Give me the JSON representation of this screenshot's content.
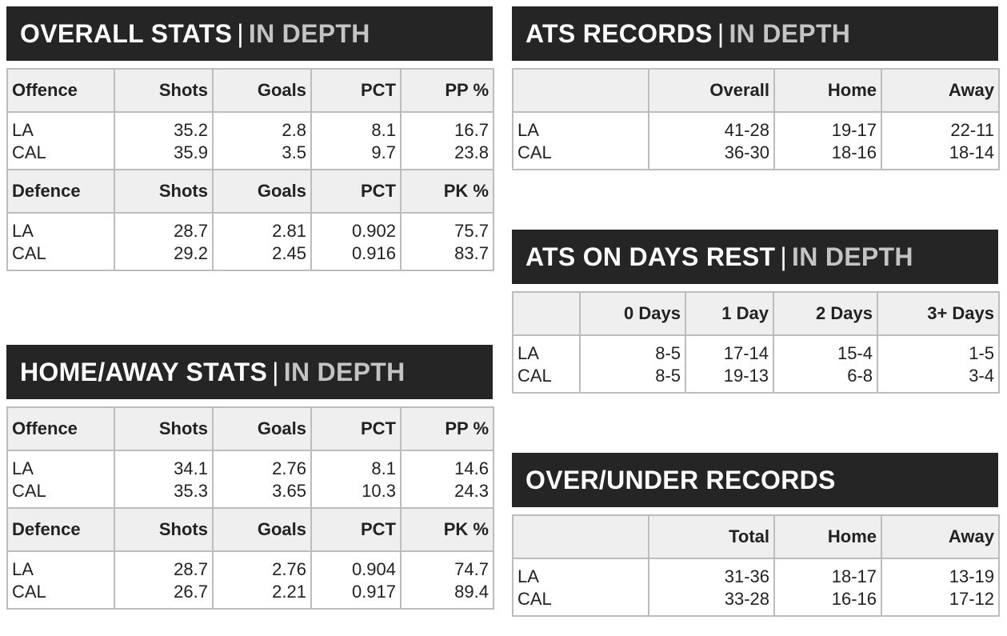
{
  "overall": {
    "title": "OVERALL STATS",
    "title_suffix": "IN DEPTH",
    "blocks": [
      {
        "headers": [
          "Offence",
          "Shots",
          "Goals",
          "PCT",
          "PP %"
        ],
        "rows": [
          [
            "LA",
            "35.2",
            "2.8",
            "8.1",
            "16.7"
          ],
          [
            "CAL",
            "35.9",
            "3.5",
            "9.7",
            "23.8"
          ]
        ]
      },
      {
        "headers": [
          "Defence",
          "Shots",
          "Goals",
          "PCT",
          "PK %"
        ],
        "rows": [
          [
            "LA",
            "28.7",
            "2.81",
            "0.902",
            "75.7"
          ],
          [
            "CAL",
            "29.2",
            "2.45",
            "0.916",
            "83.7"
          ]
        ]
      }
    ]
  },
  "homeaway": {
    "title": "HOME/AWAY STATS",
    "title_suffix": "IN DEPTH",
    "blocks": [
      {
        "headers": [
          "Offence",
          "Shots",
          "Goals",
          "PCT",
          "PP %"
        ],
        "rows": [
          [
            "LA",
            "34.1",
            "2.76",
            "8.1",
            "14.6"
          ],
          [
            "CAL",
            "35.3",
            "3.65",
            "10.3",
            "24.3"
          ]
        ]
      },
      {
        "headers": [
          "Defence",
          "Shots",
          "Goals",
          "PCT",
          "PK %"
        ],
        "rows": [
          [
            "LA",
            "28.7",
            "2.76",
            "0.904",
            "74.7"
          ],
          [
            "CAL",
            "26.7",
            "2.21",
            "0.917",
            "89.4"
          ]
        ]
      }
    ]
  },
  "ats": {
    "title": "ATS RECORDS",
    "title_suffix": "IN DEPTH",
    "headers": [
      "",
      "Overall",
      "Home",
      "Away"
    ],
    "rows": [
      [
        "LA",
        "41-28",
        "19-17",
        "22-11"
      ],
      [
        "CAL",
        "36-30",
        "18-16",
        "18-14"
      ]
    ]
  },
  "rest": {
    "title": "ATS ON DAYS REST",
    "title_suffix": "IN DEPTH",
    "headers": [
      "",
      "0 Days",
      "1 Day",
      "2 Days",
      "3+ Days"
    ],
    "rows": [
      [
        "LA",
        "8-5",
        "17-14",
        "15-4",
        "1-5"
      ],
      [
        "CAL",
        "8-5",
        "19-13",
        "6-8",
        "3-4"
      ]
    ]
  },
  "ou": {
    "title": "OVER/UNDER RECORDS",
    "headers": [
      "",
      "Total",
      "Home",
      "Away"
    ],
    "rows": [
      [
        "LA",
        "31-36",
        "18-17",
        "13-19"
      ],
      [
        "CAL",
        "33-28",
        "16-16",
        "17-12"
      ]
    ]
  }
}
